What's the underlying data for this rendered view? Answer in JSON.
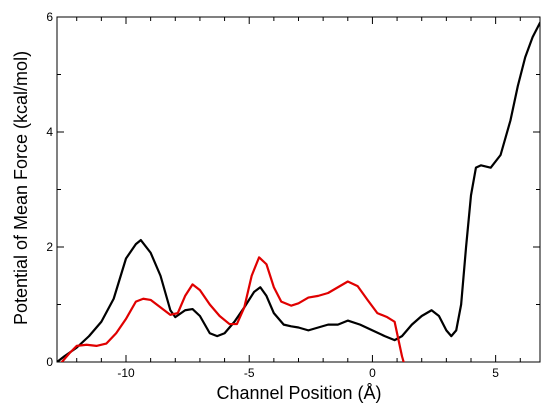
{
  "chart_data": {
    "type": "line",
    "title": "",
    "xlabel": "Channel Position (Å)",
    "ylabel": "Potential of Mean Force (kcal/mol)",
    "xlim": [
      -12.8,
      6.8
    ],
    "ylim": [
      0,
      6
    ],
    "xticks": [
      {
        "value": -10,
        "label": "-10"
      },
      {
        "value": -5,
        "label": "-5"
      },
      {
        "value": 0,
        "label": "0"
      },
      {
        "value": 5,
        "label": "5"
      }
    ],
    "yticks": [
      {
        "value": 0,
        "label": "0"
      },
      {
        "value": 2,
        "label": "2"
      },
      {
        "value": 4,
        "label": "4"
      },
      {
        "value": 6,
        "label": "6"
      }
    ],
    "grid": false,
    "legend": "none",
    "series": [
      {
        "color": "#000000",
        "points": [
          [
            -12.8,
            0.0
          ],
          [
            -12.5,
            0.1
          ],
          [
            -12.0,
            0.25
          ],
          [
            -11.5,
            0.45
          ],
          [
            -11.0,
            0.7
          ],
          [
            -10.5,
            1.1
          ],
          [
            -10.0,
            1.8
          ],
          [
            -9.6,
            2.05
          ],
          [
            -9.4,
            2.12
          ],
          [
            -9.0,
            1.9
          ],
          [
            -8.6,
            1.5
          ],
          [
            -8.2,
            0.9
          ],
          [
            -8.0,
            0.78
          ],
          [
            -7.6,
            0.9
          ],
          [
            -7.3,
            0.92
          ],
          [
            -7.0,
            0.8
          ],
          [
            -6.6,
            0.5
          ],
          [
            -6.3,
            0.45
          ],
          [
            -6.0,
            0.5
          ],
          [
            -5.6,
            0.7
          ],
          [
            -5.2,
            0.95
          ],
          [
            -4.8,
            1.22
          ],
          [
            -4.55,
            1.3
          ],
          [
            -4.3,
            1.15
          ],
          [
            -4.0,
            0.85
          ],
          [
            -3.6,
            0.65
          ],
          [
            -3.3,
            0.62
          ],
          [
            -3.0,
            0.6
          ],
          [
            -2.6,
            0.55
          ],
          [
            -2.2,
            0.6
          ],
          [
            -1.8,
            0.65
          ],
          [
            -1.4,
            0.65
          ],
          [
            -1.0,
            0.72
          ],
          [
            -0.5,
            0.65
          ],
          [
            0.0,
            0.55
          ],
          [
            0.5,
            0.45
          ],
          [
            0.9,
            0.38
          ],
          [
            1.2,
            0.45
          ],
          [
            1.6,
            0.65
          ],
          [
            2.0,
            0.8
          ],
          [
            2.4,
            0.9
          ],
          [
            2.7,
            0.8
          ],
          [
            3.0,
            0.55
          ],
          [
            3.2,
            0.45
          ],
          [
            3.4,
            0.55
          ],
          [
            3.6,
            1.0
          ],
          [
            3.8,
            2.0
          ],
          [
            4.0,
            2.9
          ],
          [
            4.2,
            3.38
          ],
          [
            4.4,
            3.42
          ],
          [
            4.8,
            3.38
          ],
          [
            5.2,
            3.6
          ],
          [
            5.6,
            4.2
          ],
          [
            5.9,
            4.8
          ],
          [
            6.2,
            5.3
          ],
          [
            6.5,
            5.65
          ],
          [
            6.8,
            5.9
          ]
        ]
      },
      {
        "color": "#e00000",
        "points": [
          [
            -12.6,
            0.0
          ],
          [
            -12.3,
            0.15
          ],
          [
            -12.0,
            0.28
          ],
          [
            -11.6,
            0.3
          ],
          [
            -11.2,
            0.28
          ],
          [
            -10.8,
            0.32
          ],
          [
            -10.4,
            0.5
          ],
          [
            -10.0,
            0.75
          ],
          [
            -9.6,
            1.05
          ],
          [
            -9.3,
            1.1
          ],
          [
            -9.0,
            1.08
          ],
          [
            -8.6,
            0.95
          ],
          [
            -8.2,
            0.82
          ],
          [
            -7.9,
            0.85
          ],
          [
            -7.6,
            1.15
          ],
          [
            -7.3,
            1.35
          ],
          [
            -7.0,
            1.25
          ],
          [
            -6.6,
            1.0
          ],
          [
            -6.2,
            0.8
          ],
          [
            -5.8,
            0.66
          ],
          [
            -5.5,
            0.66
          ],
          [
            -5.2,
            0.95
          ],
          [
            -4.9,
            1.5
          ],
          [
            -4.6,
            1.82
          ],
          [
            -4.3,
            1.7
          ],
          [
            -4.0,
            1.3
          ],
          [
            -3.7,
            1.05
          ],
          [
            -3.3,
            0.98
          ],
          [
            -3.0,
            1.02
          ],
          [
            -2.6,
            1.12
          ],
          [
            -2.2,
            1.15
          ],
          [
            -1.8,
            1.2
          ],
          [
            -1.4,
            1.3
          ],
          [
            -1.0,
            1.4
          ],
          [
            -0.6,
            1.32
          ],
          [
            -0.2,
            1.08
          ],
          [
            0.2,
            0.85
          ],
          [
            0.6,
            0.78
          ],
          [
            0.9,
            0.7
          ],
          [
            1.05,
            0.4
          ],
          [
            1.2,
            0.1
          ],
          [
            1.3,
            -0.05
          ]
        ]
      }
    ]
  }
}
